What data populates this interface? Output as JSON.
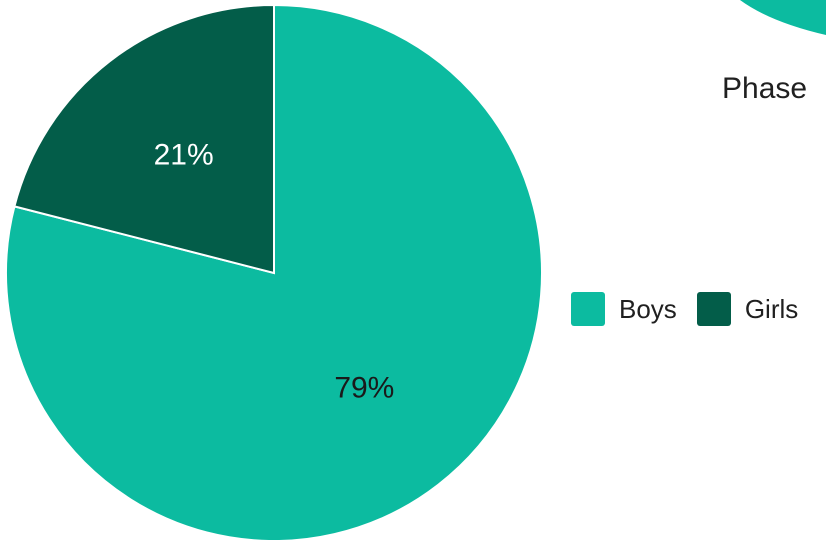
{
  "chart_data": {
    "type": "pie",
    "categories": [
      "Boys",
      "Girls"
    ],
    "values": [
      79,
      21
    ],
    "labels": [
      "79%",
      "21%"
    ],
    "colors": [
      "#0cbba0",
      "#035d49"
    ],
    "label_colors": [
      "#1a1a1a",
      "#ffffff"
    ],
    "legend_position": "right",
    "start": "top, clockwise with Girls ending at top"
  },
  "partial_text": "Phase",
  "partial_shape_color": "#0cbba0"
}
